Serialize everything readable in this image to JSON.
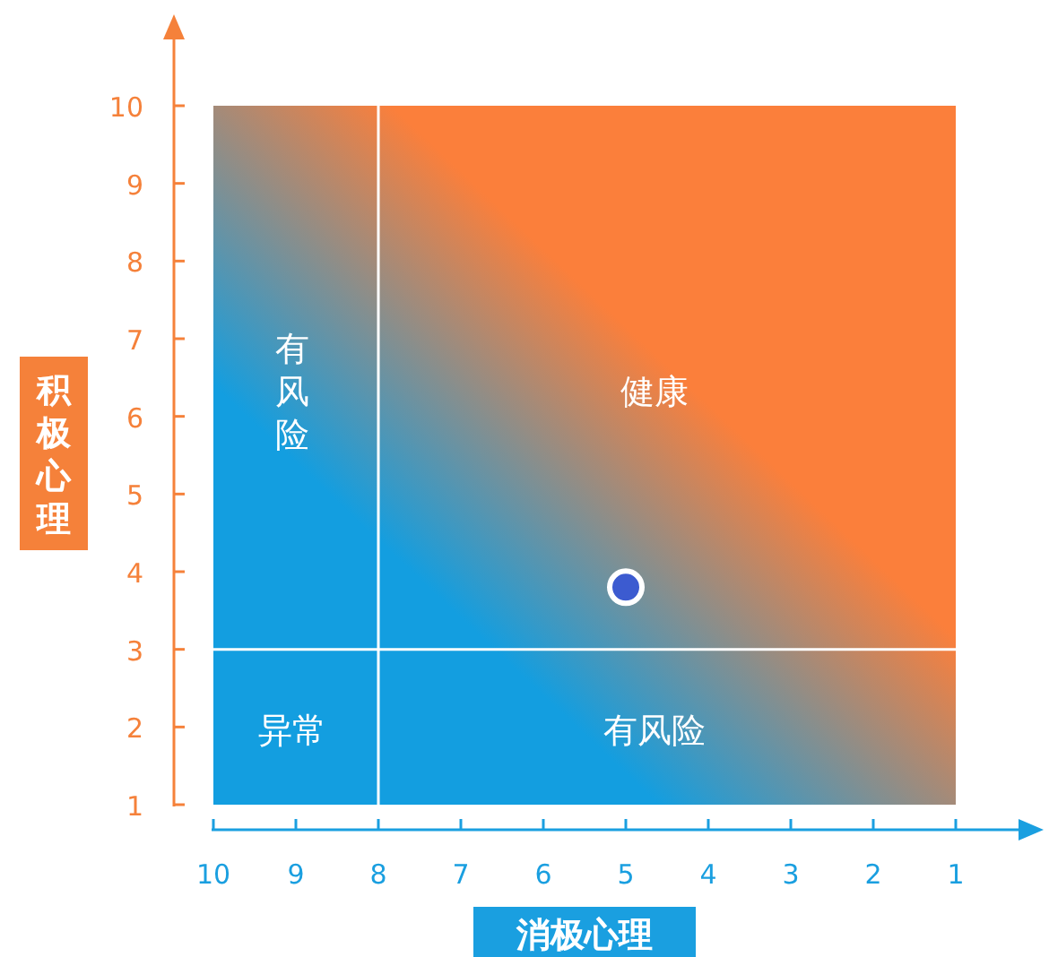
{
  "chart_data": {
    "type": "scatter",
    "xlabel": "消极心理",
    "ylabel": "积极心理",
    "xlim": [
      10,
      1
    ],
    "ylim": [
      1,
      10
    ],
    "xticks": [
      10,
      9,
      8,
      7,
      6,
      5,
      4,
      3,
      2,
      1
    ],
    "yticks": [
      1,
      2,
      3,
      4,
      5,
      6,
      7,
      8,
      9,
      10
    ],
    "marker": "circle",
    "series": [
      {
        "color": "#3c5bd0",
        "x": [
          5
        ],
        "values": [
          3.8
        ]
      }
    ],
    "ref_lines": [
      {
        "axis": "x",
        "value": 8,
        "color": "#ffffff"
      },
      {
        "axis": "y",
        "value": 3,
        "color": "#ffffff"
      }
    ],
    "annotations": [
      "有风险",
      "健康",
      "异常",
      "有风险"
    ]
  }
}
